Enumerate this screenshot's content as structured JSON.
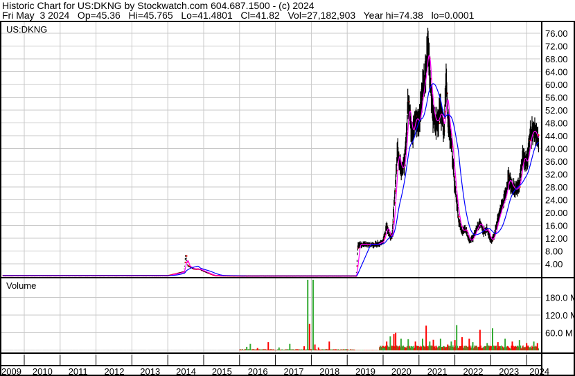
{
  "header": {
    "title": "Historic Chart for US:DKNG by Stockwatch.com 604.687.1500 - (c) 2024",
    "quote": "Fri May  3 2024   Op=45.36   Hi=45.765   Lo=41.4801   Cl=41.82   Vol=27,182,903   Year hi=74.38   lo=0.0001"
  },
  "chart_data": [
    {
      "type": "line",
      "title": "US:DKNG",
      "ylim": [
        0,
        78
      ],
      "y_ticks": [
        "4.00",
        "8.00",
        "12.00",
        "16.00",
        "20.00",
        "24.00",
        "28.00",
        "32.00",
        "36.00",
        "40.00",
        "44.00",
        "48.00",
        "52.00",
        "56.00",
        "60.00",
        "64.00",
        "68.00",
        "72.00",
        "76.00"
      ],
      "x_ticks": [
        "2009",
        "2010",
        "2011",
        "2012",
        "2013",
        "2014",
        "2015",
        "2016",
        "2017",
        "2018",
        "2019",
        "2020",
        "2021",
        "2022",
        "2023",
        "2024"
      ],
      "grid": true,
      "colors": {
        "price": "#000000",
        "ma_short": "#ff00ff",
        "ma_long": "#0000ff",
        "marker": "#ff0000"
      },
      "series": [
        {
          "x": [
            2009.4,
            2010,
            2011,
            2012,
            2013,
            2014.0,
            2014.45,
            2014.5,
            2014.55,
            2014.7,
            2014.9,
            2015.1,
            2015.3,
            2016,
            2017,
            2018,
            2019.0,
            2019.25,
            2019.3,
            2019.5,
            2019.8,
            2020.0,
            2020.1,
            2020.2,
            2020.25,
            2020.35,
            2020.4,
            2020.5,
            2020.6,
            2020.7,
            2020.8,
            2020.9,
            2021.0,
            2021.1,
            2021.2,
            2021.25,
            2021.3,
            2021.4,
            2021.5,
            2021.6,
            2021.7,
            2021.75,
            2021.8,
            2021.9,
            2022.0,
            2022.1,
            2022.2,
            2022.3,
            2022.4,
            2022.5,
            2022.6,
            2022.7,
            2022.8,
            2022.9,
            2023.0,
            2023.1,
            2023.2,
            2023.3,
            2023.4,
            2023.5,
            2023.6,
            2023.7,
            2023.8,
            2023.9,
            2024.0,
            2024.1,
            2024.2,
            2024.3,
            2024.34
          ],
          "y": [
            0.3,
            0.3,
            0.3,
            0.3,
            0.3,
            0.3,
            1.5,
            7.0,
            3.5,
            2.5,
            2.2,
            1.2,
            0.3,
            0.2,
            0.2,
            0.2,
            0.2,
            0.2,
            10.0,
            10.0,
            10.0,
            11,
            16,
            12,
            13,
            30,
            40,
            33,
            36,
            55,
            44,
            50,
            48,
            58,
            65,
            74,
            62,
            50,
            48,
            52,
            45,
            62,
            50,
            42,
            28,
            18,
            14,
            15,
            11,
            12,
            15,
            17,
            14,
            15,
            11,
            13,
            18,
            22,
            25,
            31,
            28,
            27,
            29,
            38,
            35,
            44,
            46,
            43,
            41.82
          ]
        }
      ]
    },
    {
      "type": "bar",
      "title": "Volume",
      "ylim": [
        0,
        245
      ],
      "y_ticks": [
        "60.0 M",
        "120.0 M",
        "180.0 M"
      ],
      "colors": {
        "up": "#33aa33",
        "down": "#ff0000",
        "flat": "#999999"
      },
      "series": [
        {
          "x": [
            2016.2,
            2016.3,
            2016.5,
            2016.8,
            2017.1,
            2017.4,
            2017.8,
            2017.9,
            2017.95,
            2018.05,
            2018.1,
            2018.2,
            2018.5,
            2020.0,
            2020.1,
            2020.2,
            2020.3,
            2020.35,
            2020.5,
            2020.7,
            2020.9,
            2021.1,
            2021.2,
            2021.3,
            2021.4,
            2021.6,
            2021.8,
            2021.9,
            2022.0,
            2022.05,
            2022.2,
            2022.4,
            2022.5,
            2022.7,
            2022.9,
            2023.05,
            2023.2,
            2023.4,
            2023.6,
            2023.8,
            2024.0,
            2024.2,
            2024.3
          ],
          "y": [
            12,
            22,
            8,
            28,
            10,
            22,
            14,
            245,
            90,
            240,
            20,
            10,
            30,
            8,
            30,
            48,
            56,
            60,
            40,
            38,
            30,
            40,
            84,
            30,
            36,
            40,
            20,
            30,
            35,
            86,
            45,
            40,
            28,
            70,
            25,
            75,
            28,
            40,
            30,
            35,
            25,
            30,
            25
          ],
          "up": [
            true,
            true,
            false,
            false,
            true,
            true,
            false,
            true,
            false,
            true,
            false,
            false,
            false,
            true,
            false,
            true,
            false,
            false,
            true,
            true,
            false,
            true,
            false,
            true,
            false,
            true,
            false,
            true,
            false,
            true,
            false,
            false,
            true,
            false,
            true,
            true,
            false,
            true,
            false,
            true,
            false,
            true,
            false
          ]
        }
      ]
    }
  ]
}
